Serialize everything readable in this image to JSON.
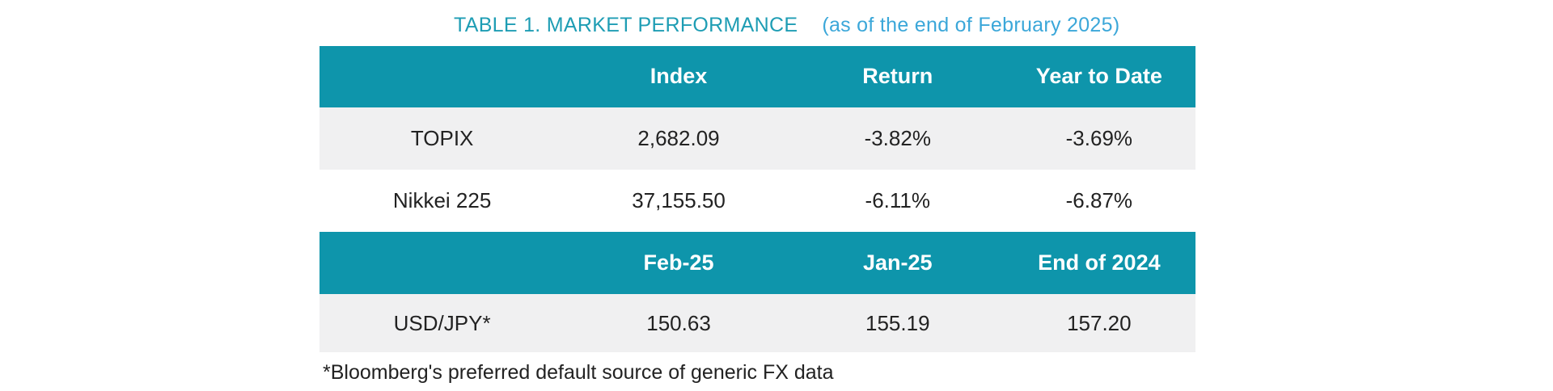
{
  "colors": {
    "teal": "#0e95ab",
    "row_gray": "#f0f0f1",
    "title_teal": "#1e9db4",
    "subtitle_blue": "#3ba7d9",
    "body_text": "#222222",
    "header_text": "#ffffff"
  },
  "title": {
    "main": "TABLE 1. MARKET PERFORMANCE",
    "suffix": "(as of the end of February 2025)"
  },
  "table": {
    "sections": [
      {
        "headers": [
          "",
          "Index",
          "Return",
          "Year to Date"
        ],
        "rows": [
          {
            "label": "TOPIX",
            "values": [
              "2,682.09",
              "-3.82%",
              "-3.69%"
            ]
          },
          {
            "label": "Nikkei 225",
            "values": [
              "37,155.50",
              "-6.11%",
              "-6.87%"
            ]
          }
        ]
      },
      {
        "headers": [
          "",
          "Feb-25",
          "Jan-25",
          "End of 2024"
        ],
        "rows": [
          {
            "label": "USD/JPY*",
            "values": [
              "150.63",
              "155.19",
              "157.20"
            ]
          }
        ]
      }
    ]
  },
  "footnote": "*Bloomberg's preferred default source of generic FX data"
}
